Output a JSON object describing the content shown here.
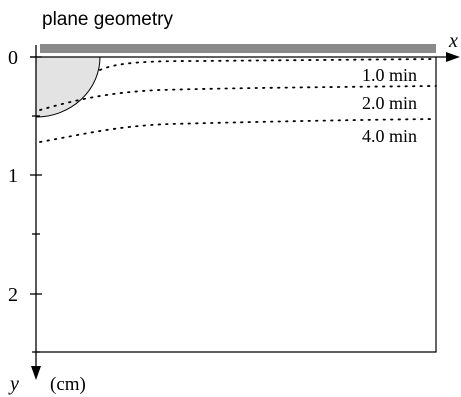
{
  "diagram": {
    "title": "plane geometry",
    "axes": {
      "x_label": "x",
      "y_label": "y",
      "y_unit": "(cm)",
      "y_ticks": [
        {
          "value": 0,
          "label": "0"
        },
        {
          "value": 0.5,
          "label": ""
        },
        {
          "value": 1,
          "label": "1"
        },
        {
          "value": 1.5,
          "label": ""
        },
        {
          "value": 2,
          "label": "2"
        },
        {
          "value": 2.5,
          "label": ""
        }
      ]
    },
    "contours": [
      {
        "label": "1.0 min"
      },
      {
        "label": "2.0 min"
      },
      {
        "label": "4.0 min"
      }
    ],
    "colors": {
      "plate": "#8a8a8a",
      "source_fill": "#e3e3e3",
      "lines": "#000000"
    }
  }
}
